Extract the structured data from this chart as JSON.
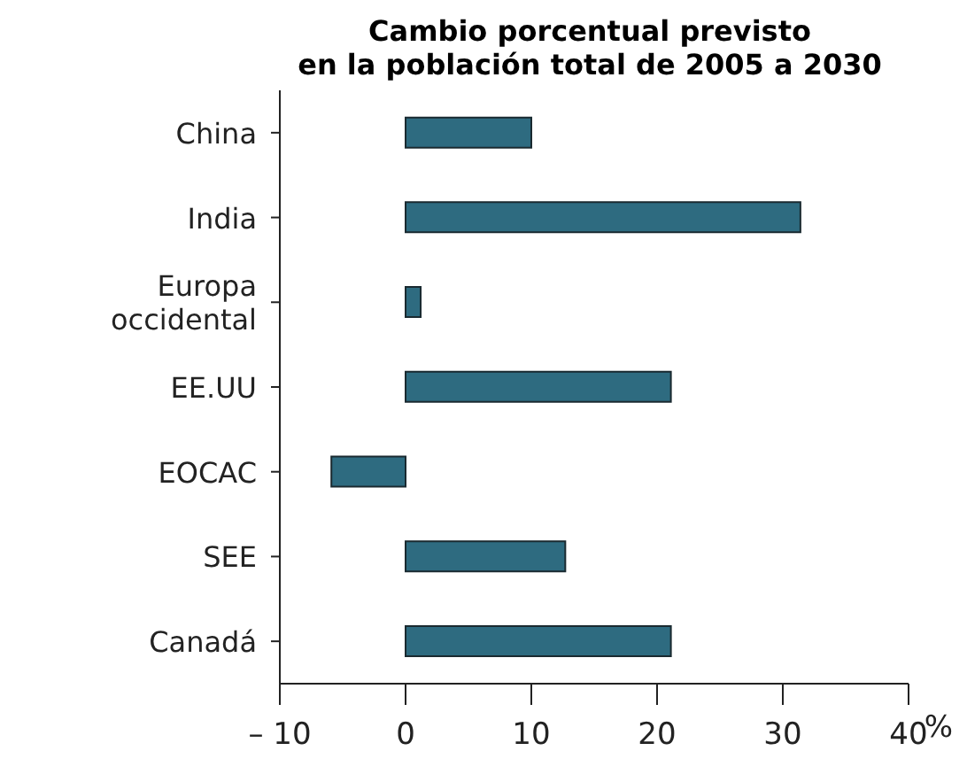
{
  "chart_data": {
    "type": "bar",
    "orientation": "horizontal",
    "title": "Cambio porcentual previsto\nen la población total de 2005 a 2030",
    "xlabel": "%",
    "categories": [
      "China",
      "India",
      "Europa occidental",
      "EE.UU",
      "EOCAC",
      "SEE",
      "Canadá"
    ],
    "values": [
      10.0,
      31.4,
      1.2,
      21.1,
      -5.9,
      12.7,
      21.1
    ],
    "color": "#2e6b80",
    "xlim": [
      -10,
      40
    ],
    "xticks": [
      {
        "value": -10,
        "label": "– 10"
      },
      0,
      10,
      20,
      30,
      40
    ],
    "grid": false,
    "legend": false
  }
}
